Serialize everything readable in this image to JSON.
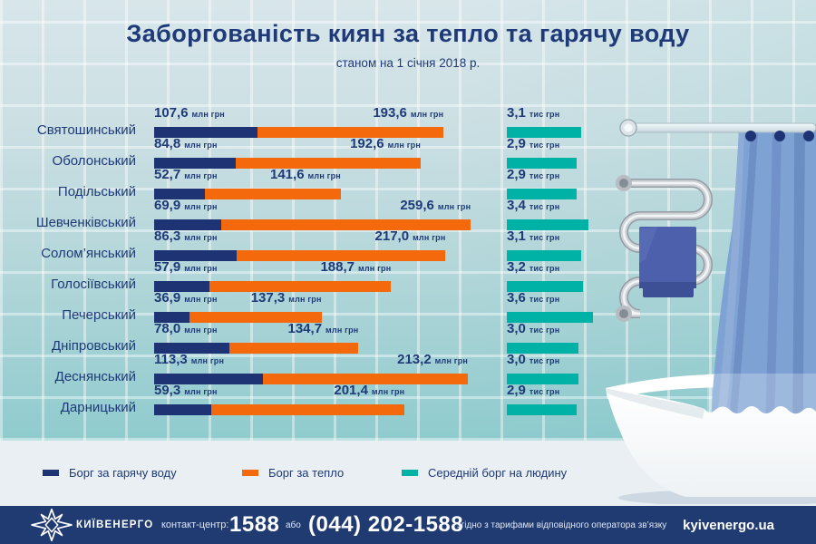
{
  "header": {
    "title": "Заборгованість киян за тепло та гарячу воду",
    "subtitle": "станом на 1 січня 2018 р."
  },
  "chart_data": {
    "type": "bar",
    "orientation": "horizontal",
    "title": "Заборгованість киян за тепло та гарячу воду",
    "subtitle": "станом на 1 січня 2018 р.",
    "categories": [
      "Святошинський",
      "Оболонський",
      "Подільський",
      "Шевченківський",
      "Солом’янський",
      "Голосіївський",
      "Печерський",
      "Дніпровський",
      "Деснянський",
      "Дарницький"
    ],
    "series": [
      {
        "name": "Борг за гарячу воду",
        "color": "#1e3374",
        "unit": "млн грн",
        "values": [
          107.6,
          84.8,
          52.7,
          69.9,
          86.3,
          57.9,
          36.9,
          78.0,
          113.3,
          59.3
        ]
      },
      {
        "name": "Борг за тепло",
        "color": "#f4690c",
        "unit": "млн грн",
        "values": [
          193.6,
          192.6,
          141.6,
          259.6,
          217.0,
          188.7,
          137.3,
          134.7,
          213.2,
          201.4
        ]
      },
      {
        "name": "Середній борг на людину",
        "color": "#00b2a6",
        "unit": "тис грн",
        "values": [
          3.1,
          2.9,
          2.9,
          3.4,
          3.1,
          3.2,
          3.6,
          3.0,
          3.0,
          2.9
        ]
      }
    ],
    "legend_position": "bottom",
    "grid": false,
    "stacked": true
  },
  "units": {
    "main": "млн грн",
    "avg": "тис грн"
  },
  "colors": {
    "navy": "#1e3374",
    "orange": "#f4690c",
    "teal": "#00b2a6",
    "footer": "#203a72",
    "text": "#1e3a78"
  },
  "footer": {
    "brand": "КИЇВЕНЕРГО",
    "contact_label": "контакт-центр:",
    "phone_short": "1588",
    "or_label": "або",
    "phone_full": "(044) 202-1588",
    "tariff_note": "згідно з тарифами відповідного оператора зв’язку",
    "website": "kyivenergo.ua"
  }
}
